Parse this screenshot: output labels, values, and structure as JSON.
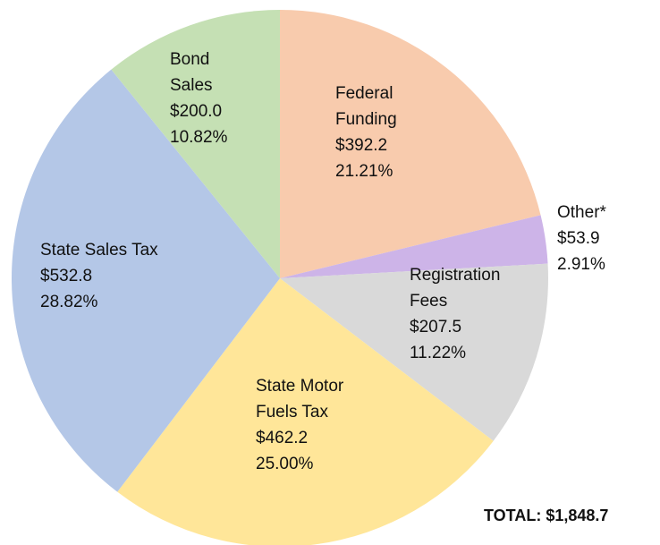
{
  "chart_data": {
    "type": "pie",
    "categories": [
      "Federal\nFunding",
      "Other*",
      "Registration\nFees",
      "State Motor\nFuels Tax",
      "State Sales Tax",
      "Bond\nSales"
    ],
    "values": [
      392.2,
      53.9,
      207.5,
      462.2,
      532.8,
      200.0
    ],
    "value_labels": [
      "$392.2",
      "$53.9",
      "$207.5",
      "$462.2",
      "$532.8",
      "$200.0"
    ],
    "percent_labels": [
      "21.21%",
      "2.91%",
      "11.22%",
      "25.00%",
      "28.82%",
      "10.82%"
    ],
    "colors": [
      "#f8cbad",
      "#cdb4e8",
      "#d9d9d9",
      "#ffe699",
      "#b4c7e7",
      "#c5e0b4"
    ],
    "total_label": "TOTAL: $1,848.7"
  }
}
